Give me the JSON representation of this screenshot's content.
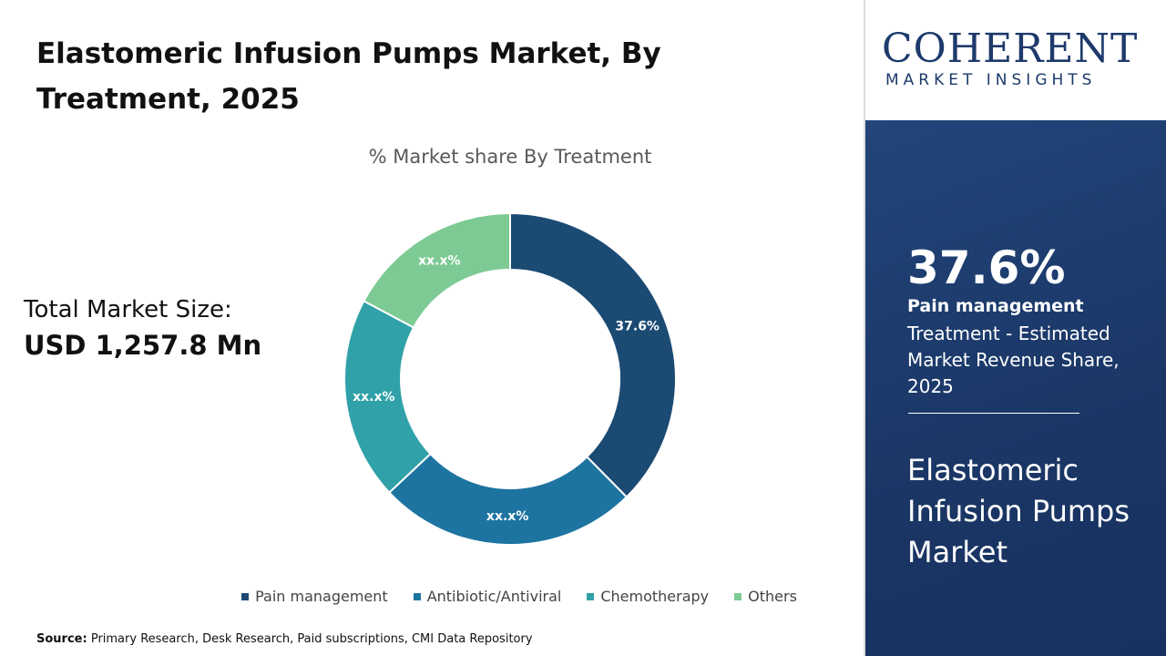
{
  "header": {
    "title": "Elastomeric Infusion Pumps Market, By Treatment, 2025"
  },
  "chart_data": {
    "type": "donut",
    "title": "% Market share By Treatment",
    "categories": [
      "Pain management",
      "Antibiotic/Antiviral",
      "Chemotherapy",
      "Others"
    ],
    "values": [
      37.6,
      25.4,
      19.8,
      17.2
    ],
    "value_labels": [
      "37.6%",
      "xx.x%",
      "xx.x%",
      "xx.x%"
    ],
    "colors": [
      "#1b4a73",
      "#1d74a1",
      "#30a1a9",
      "#7dca95"
    ],
    "legend": "bottom"
  },
  "market_size": {
    "label": "Total Market Size:",
    "value": "USD 1,257.8 Mn"
  },
  "highlight": {
    "description": "Treatment - Estimated Market Revenue Share, 2025",
    "market": "Elastomeric Infusion Pumps Market"
  },
  "logo": {
    "name": "COHERENT",
    "tagline": "MARKET INSIGHTS"
  },
  "source": {
    "label": "Source:",
    "text": "Primary Research, Desk Research, Paid subscriptions, CMI Data Repository"
  }
}
